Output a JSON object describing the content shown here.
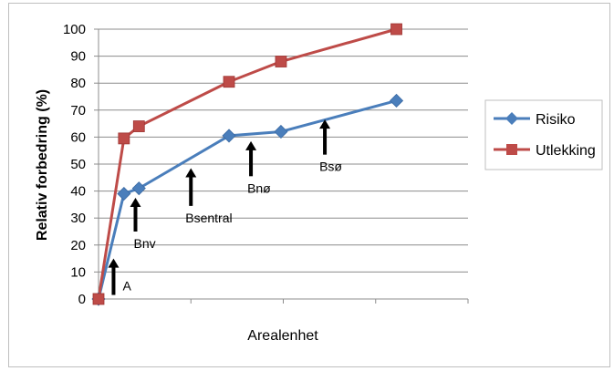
{
  "chart_data": {
    "type": "line",
    "xlabel": "Arealenhet",
    "ylabel": "Relativ forbedring (%)",
    "ylim": [
      0,
      100
    ],
    "ytick_step": 10,
    "grid": "horizontal",
    "legend": "right",
    "series": [
      {
        "name": "Risiko",
        "color": "#4a7ebb",
        "marker": "diamond",
        "points": [
          [
            0,
            0
          ],
          [
            1.1,
            39
          ],
          [
            1.75,
            41
          ],
          [
            5.65,
            60.5
          ],
          [
            7.9,
            62
          ],
          [
            12.9,
            73.5
          ]
        ]
      },
      {
        "name": "Utlekking",
        "color": "#be4b48",
        "marker": "square",
        "points": [
          [
            0,
            0
          ],
          [
            1.1,
            59.5
          ],
          [
            1.75,
            64
          ],
          [
            5.65,
            80.5
          ],
          [
            7.9,
            88
          ],
          [
            12.9,
            100
          ]
        ]
      }
    ],
    "annotations": [
      {
        "label": "A",
        "x": 0.65,
        "y_from": 1.5,
        "y_to": 15
      },
      {
        "label": "Bnv",
        "x": 1.6,
        "y_from": 25,
        "y_to": 37.5
      },
      {
        "label": "Bsentral",
        "x": 4.0,
        "y_from": 34.5,
        "y_to": 48.5
      },
      {
        "label": "Bnø",
        "x": 6.6,
        "y_from": 45.5,
        "y_to": 58.5
      },
      {
        "label": "Bsø",
        "x": 9.8,
        "y_from": 53.5,
        "y_to": 66.5
      }
    ]
  }
}
